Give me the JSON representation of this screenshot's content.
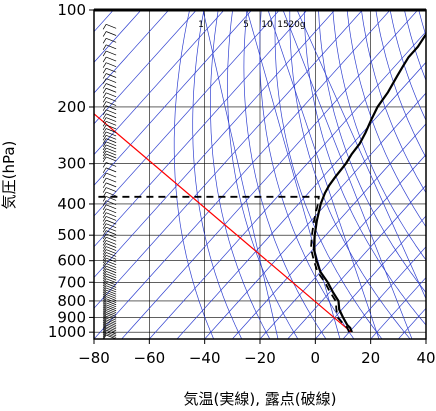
{
  "chart_data": {
    "type": "line",
    "title": "",
    "xlabel": "気温(実線), 露点(破線)",
    "ylabel": "気圧(hPa)",
    "x_ticks": [
      -80,
      -60,
      -40,
      -20,
      0,
      20,
      40
    ],
    "y_ticks": [
      100,
      200,
      300,
      400,
      500,
      600,
      700,
      800,
      900,
      1000
    ],
    "xlim": [
      -80,
      40
    ],
    "ylim": [
      1050,
      100
    ],
    "y_scale": "log",
    "grid": true,
    "mixing_ratio_labels": [
      "1",
      "5",
      "10",
      "15",
      "20g"
    ],
    "series": [
      {
        "role": "temperature",
        "style": "solid",
        "color": "#000000",
        "points": [
          [
            11,
            1000
          ],
          [
            9,
            970
          ],
          [
            7,
            950
          ],
          [
            3,
            900
          ],
          [
            -1,
            850
          ],
          [
            -4,
            800
          ],
          [
            -9,
            750
          ],
          [
            -14,
            700
          ],
          [
            -20,
            650
          ],
          [
            -25,
            600
          ],
          [
            -30,
            550
          ],
          [
            -34,
            500
          ],
          [
            -38,
            450
          ],
          [
            -42,
            400
          ],
          [
            -44,
            370
          ],
          [
            -45,
            350
          ],
          [
            -45.5,
            330
          ],
          [
            -46,
            300
          ],
          [
            -47,
            280
          ],
          [
            -47.5,
            260
          ],
          [
            -49,
            240
          ],
          [
            -51,
            220
          ],
          [
            -53,
            200
          ],
          [
            -54,
            180
          ],
          [
            -56,
            160
          ],
          [
            -57,
            150
          ],
          [
            -58,
            140
          ],
          [
            -58,
            130
          ],
          [
            -59,
            120
          ],
          [
            -59.5,
            110
          ],
          [
            -60,
            100
          ]
        ]
      },
      {
        "role": "dewpoint",
        "style": "dashed",
        "color": "#000000",
        "points": [
          [
            10,
            1000
          ],
          [
            8,
            970
          ],
          [
            6,
            950
          ],
          [
            1,
            900
          ],
          [
            -2,
            850
          ],
          [
            -5,
            800
          ],
          [
            -10,
            750
          ],
          [
            -15,
            700
          ],
          [
            -21,
            650
          ],
          [
            -26,
            600
          ],
          [
            -31,
            550
          ],
          [
            -35,
            500
          ],
          [
            -39,
            450
          ],
          [
            -43,
            400
          ],
          [
            -45,
            380
          ],
          [
            -80,
            380
          ]
        ]
      }
    ],
    "reference_line": {
      "color": "#ff0000",
      "points": [
        [
          13,
          1000
        ],
        [
          -80,
          210
        ]
      ]
    },
    "wind_barbs_x": -72
  }
}
